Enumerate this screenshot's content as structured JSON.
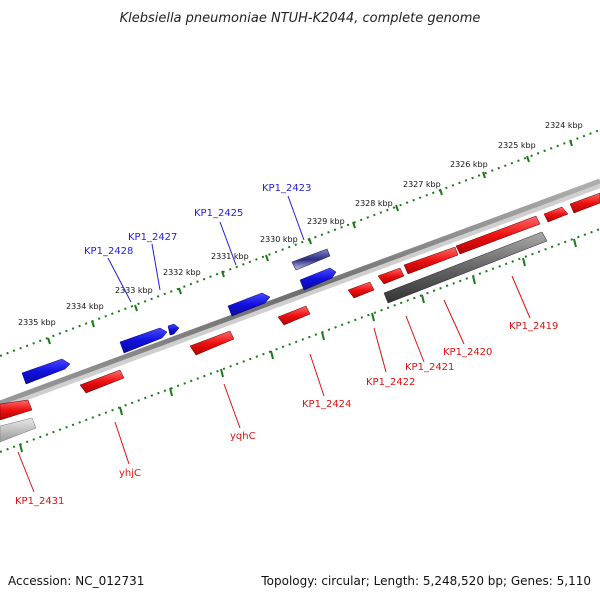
{
  "title": "Klebsiella pneumoniae NTUH-K2044, complete genome",
  "footer": {
    "accession": "Accession: NC_012731",
    "summary": "Topology: circular; Length: 5,248,520 bp; Genes: 5,110"
  },
  "colors": {
    "plus_strand": "#1f1fd6",
    "minus_strand": "#e01010",
    "selected_gene": "#3a3a8c",
    "pseudo_gene": "#555555",
    "backbone": "#7a7a7a",
    "ruler": "#1a7a1a"
  },
  "ruler_labels": [
    "2324 kbp",
    "2325 kbp",
    "2326 kbp",
    "2327 kbp",
    "2328 kbp",
    "2329 kbp",
    "2330 kbp",
    "2331 kbp",
    "2332 kbp",
    "2333 kbp",
    "2334 kbp",
    "2335 kbp"
  ],
  "gene_labels": {
    "kp1_2423": "KP1_2423",
    "kp1_2425": "KP1_2425",
    "kp1_2427": "KP1_2427",
    "kp1_2428": "KP1_2428",
    "kp1_2419": "KP1_2419",
    "kp1_2420": "KP1_2420",
    "kp1_2421": "KP1_2421",
    "kp1_2422": "KP1_2422",
    "kp1_2424": "KP1_2424",
    "yqhc": "yqhC",
    "yhjc": "yhjC",
    "kp1_2431": "KP1_2431"
  }
}
